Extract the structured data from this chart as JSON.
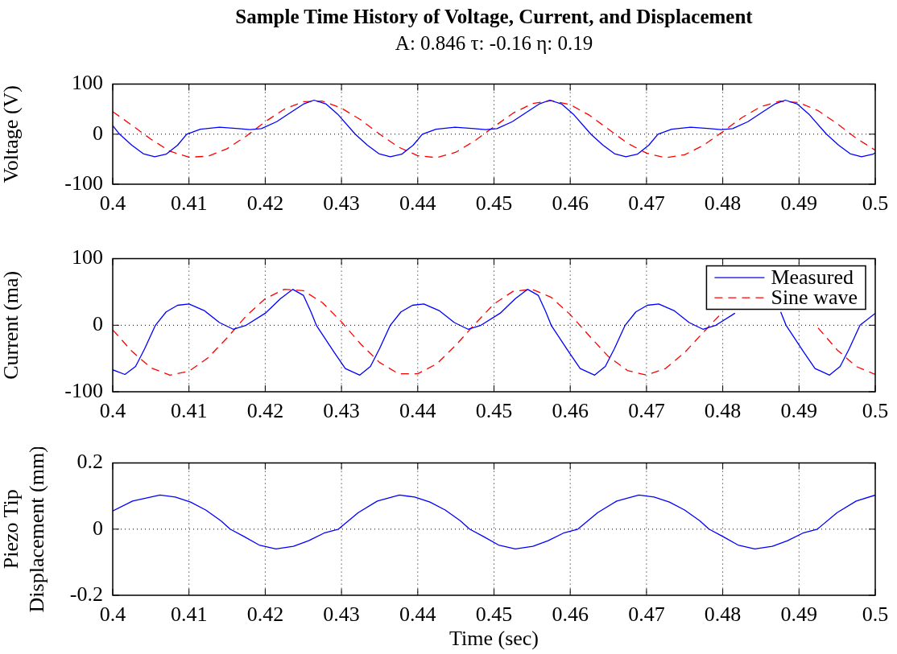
{
  "chart_data": [
    {
      "type": "line",
      "title": "Sample Time History of Voltage, Current, and Displacement",
      "subtitle": "A: 0.846 τ: -0.16 η: 0.19",
      "ylabel": "Voltage (V)",
      "xlim": [
        0.4,
        0.5
      ],
      "xticks": [
        0.4,
        0.41,
        0.42,
        0.43,
        0.44,
        0.45,
        0.46,
        0.47,
        0.48,
        0.49,
        0.5
      ],
      "ylim": [
        -100,
        100
      ],
      "yticks": [
        -100,
        0,
        100
      ],
      "grid": true,
      "marker": "none",
      "series": [
        {
          "color": "#0000ff",
          "line_style": "solid",
          "x": [
            0.4,
            0.4009,
            0.4025,
            0.404,
            0.4055,
            0.407,
            0.4085,
            0.4097,
            0.4115,
            0.414,
            0.4165,
            0.418,
            0.4195,
            0.4215,
            0.4235,
            0.425,
            0.4264,
            0.428,
            0.4295,
            0.4318,
            0.4334,
            0.4349,
            0.4364,
            0.4379,
            0.4394,
            0.4406,
            0.4424,
            0.4449,
            0.4474,
            0.4489,
            0.4504,
            0.4524,
            0.4544,
            0.4559,
            0.4573,
            0.4589,
            0.4604,
            0.4627,
            0.4643,
            0.4658,
            0.4673,
            0.4688,
            0.4703,
            0.4715,
            0.4733,
            0.4758,
            0.4783,
            0.4798,
            0.4813,
            0.4833,
            0.4853,
            0.4868,
            0.4882,
            0.4898,
            0.4913,
            0.4936,
            0.4952,
            0.4967,
            0.4982,
            0.4997,
            0.5
          ],
          "values": [
            17,
            0,
            -22,
            -39,
            -45,
            -40,
            -22,
            0,
            10,
            14,
            11,
            9,
            11,
            25,
            45,
            60,
            68,
            60,
            40,
            0,
            -22,
            -39,
            -45,
            -40,
            -22,
            0,
            10,
            14,
            11,
            9,
            11,
            25,
            45,
            60,
            68,
            60,
            40,
            0,
            -22,
            -39,
            -45,
            -40,
            -22,
            0,
            10,
            14,
            11,
            9,
            11,
            25,
            45,
            60,
            68,
            60,
            40,
            0,
            -22,
            -39,
            -45,
            -40,
            -37
          ]
        },
        {
          "color": "#ff0000",
          "line_style": "dashed",
          "x": [
            0.4,
            0.4025,
            0.405,
            0.4075,
            0.41,
            0.4125,
            0.415,
            0.4175,
            0.42,
            0.4225,
            0.425,
            0.4275,
            0.43,
            0.4325,
            0.435,
            0.4375,
            0.44,
            0.4425,
            0.445,
            0.4475,
            0.45,
            0.4525,
            0.455,
            0.4575,
            0.46,
            0.4625,
            0.465,
            0.4675,
            0.47,
            0.4725,
            0.475,
            0.4775,
            0.48,
            0.4825,
            0.485,
            0.4875,
            0.49,
            0.4925,
            0.495,
            0.4975,
            0.5
          ],
          "values": [
            45,
            18,
            -10,
            -34,
            -46,
            -44,
            -29,
            -4,
            25,
            50,
            65,
            66,
            52,
            29,
            0,
            -26,
            -43,
            -47,
            -36,
            -13,
            15,
            42,
            61,
            67,
            59,
            38,
            10,
            -18,
            -38,
            -47,
            -41,
            -22,
            5,
            33,
            55,
            66,
            63,
            47,
            21,
            -8,
            -32
          ]
        }
      ]
    },
    {
      "type": "line",
      "ylabel": "Current (ma)",
      "xlim": [
        0.4,
        0.5
      ],
      "xticks": [
        0.4,
        0.41,
        0.42,
        0.43,
        0.44,
        0.45,
        0.46,
        0.47,
        0.48,
        0.49,
        0.5
      ],
      "ylim": [
        -100,
        100
      ],
      "yticks": [
        -100,
        0,
        100
      ],
      "grid": true,
      "marker": "none",
      "legend": "top right",
      "series": [
        {
          "name": "Measured",
          "color": "#0000ff",
          "line_style": "solid",
          "x": [
            0.4,
            0.4016,
            0.403,
            0.4042,
            0.4056,
            0.407,
            0.4085,
            0.41,
            0.412,
            0.414,
            0.4158,
            0.4175,
            0.42,
            0.422,
            0.4236,
            0.425,
            0.426,
            0.4267,
            0.429,
            0.4305,
            0.4324,
            0.4338,
            0.435,
            0.4364,
            0.4378,
            0.4393,
            0.4408,
            0.4428,
            0.4448,
            0.4466,
            0.4483,
            0.4508,
            0.4528,
            0.4544,
            0.4558,
            0.4568,
            0.4575,
            0.4598,
            0.4613,
            0.4632,
            0.4646,
            0.4658,
            0.4672,
            0.4686,
            0.4701,
            0.4716,
            0.4736,
            0.4756,
            0.4774,
            0.4791,
            0.4816,
            0.4836,
            0.4852,
            0.4866,
            0.4876,
            0.4883,
            0.4906,
            0.4921,
            0.494,
            0.4954,
            0.4966,
            0.498,
            0.5
          ],
          "values": [
            -67,
            -74,
            -62,
            -35,
            0,
            20,
            30,
            32,
            22,
            4,
            -6,
            0,
            18,
            40,
            54,
            45,
            20,
            0,
            -40,
            -65,
            -75,
            -62,
            -35,
            0,
            20,
            30,
            32,
            22,
            4,
            -6,
            0,
            18,
            40,
            54,
            45,
            20,
            0,
            -40,
            -65,
            -75,
            -62,
            -35,
            0,
            20,
            30,
            32,
            22,
            4,
            -6,
            0,
            18,
            null,
            null,
            null,
            20,
            0,
            -40,
            -65,
            -75,
            -62,
            -35,
            0,
            18
          ]
        },
        {
          "name": "Sine wave",
          "color": "#ff0000",
          "line_style": "dashed",
          "x": [
            0.4,
            0.4025,
            0.405,
            0.4075,
            0.41,
            0.4125,
            0.415,
            0.4175,
            0.42,
            0.4225,
            0.425,
            0.4275,
            0.43,
            0.4325,
            0.435,
            0.4375,
            0.44,
            0.4425,
            0.445,
            0.4475,
            0.45,
            0.4525,
            0.455,
            0.4575,
            0.46,
            0.4625,
            0.465,
            0.4675,
            0.47,
            0.4725,
            0.475,
            0.4775,
            0.48,
            0.4825,
            0.485,
            0.4875,
            0.49,
            0.4925,
            0.495,
            0.4975,
            0.5
          ],
          "values": [
            -7,
            -39,
            -64,
            -75,
            -69,
            -49,
            -19,
            14,
            40,
            54,
            52,
            34,
            5,
            -28,
            -56,
            -73,
            -73,
            -58,
            -30,
            2,
            32,
            51,
            54,
            42,
            16,
            -16,
            -47,
            -68,
            -75,
            -65,
            -41,
            -10,
            20,
            null,
            null,
            null,
            null,
            -4,
            -37,
            -62,
            -74
          ]
        }
      ]
    },
    {
      "type": "line",
      "ylabel": "Piezo Tip Displacement (mm)",
      "xlabel": "Time (sec)",
      "xlim": [
        0.4,
        0.5
      ],
      "xticks": [
        0.4,
        0.41,
        0.42,
        0.43,
        0.44,
        0.45,
        0.46,
        0.47,
        0.48,
        0.49,
        0.5
      ],
      "ylim": [
        -0.2,
        0.2
      ],
      "yticks": [
        -0.2,
        0,
        0.2
      ],
      "grid": true,
      "marker": "none",
      "series": [
        {
          "color": "#0000ff",
          "line_style": "solid",
          "x": [
            0.4,
            0.4026,
            0.4062,
            0.4082,
            0.4102,
            0.4122,
            0.4142,
            0.4154,
            0.4172,
            0.4192,
            0.4214,
            0.4237,
            0.4257,
            0.4277,
            0.4296,
            0.4322,
            0.4347,
            0.4376,
            0.4396,
            0.4416,
            0.4436,
            0.4456,
            0.4468,
            0.4486,
            0.4506,
            0.4528,
            0.4551,
            0.4571,
            0.4591,
            0.461,
            0.4636,
            0.4661,
            0.469,
            0.471,
            0.473,
            0.475,
            0.477,
            0.4782,
            0.48,
            0.482,
            0.4842,
            0.4865,
            0.4885,
            0.4905,
            0.4924,
            0.495,
            0.4975,
            0.5
          ],
          "values": [
            0.055,
            0.085,
            0.103,
            0.097,
            0.082,
            0.058,
            0.025,
            0,
            -0.022,
            -0.048,
            -0.06,
            -0.052,
            -0.035,
            -0.012,
            0,
            0.05,
            0.085,
            0.103,
            0.097,
            0.082,
            0.058,
            0.025,
            0,
            -0.022,
            -0.048,
            -0.06,
            -0.052,
            -0.035,
            -0.012,
            0,
            0.05,
            0.085,
            0.103,
            0.097,
            0.082,
            0.058,
            0.025,
            0,
            -0.022,
            -0.048,
            -0.06,
            -0.052,
            -0.035,
            -0.012,
            0,
            0.05,
            0.085,
            0.103
          ]
        }
      ]
    }
  ]
}
